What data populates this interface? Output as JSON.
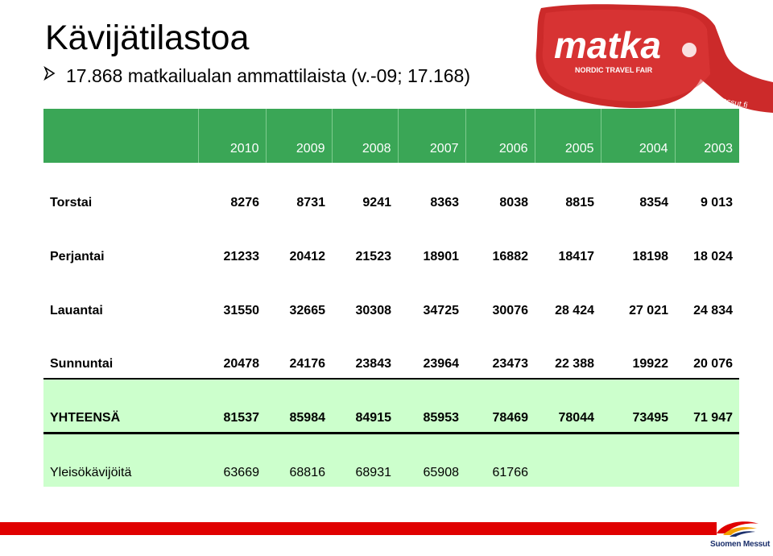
{
  "title": "Kävijätilastoa",
  "bullet": "17.868 matkailualan ammattilaista  (v.-09; 17.168)",
  "logo": {
    "brand": "matka",
    "tagline": "NORDIC TRAVEL FAIR",
    "url": "matkamessut.fi",
    "color": "#d12a2a"
  },
  "table": {
    "header_color": "#3aa656",
    "highlight_color": "#ccffcc",
    "years": [
      "2010",
      "2009",
      "2008",
      "2007",
      "2006",
      "2005",
      "2004",
      "2003"
    ],
    "rows": [
      {
        "label": "Torstai",
        "values": [
          "8276",
          "8731",
          "9241",
          "8363",
          "8038",
          "8815",
          "8354",
          "9 013"
        ]
      },
      {
        "label": "Perjantai",
        "values": [
          "21233",
          "20412",
          "21523",
          "18901",
          "16882",
          "18417",
          "18198",
          "18 024"
        ]
      },
      {
        "label": "Lauantai",
        "values": [
          "31550",
          "32665",
          "30308",
          "34725",
          "30076",
          "28 424",
          "27 021",
          "24 834"
        ]
      },
      {
        "label": "Sunnuntai",
        "values": [
          "20478",
          "24176",
          "23843",
          "23964",
          "23473",
          "22 388",
          "19922",
          "20 076"
        ]
      },
      {
        "label": "YHTEENSÄ",
        "values": [
          "81537",
          "85984",
          "84915",
          "85953",
          "78469",
          "78044",
          "73495",
          "71 947"
        ]
      },
      {
        "label": "Yleisökävijöitä",
        "values": [
          "63669",
          "68816",
          "68931",
          "65908",
          "61766",
          "",
          "",
          ""
        ]
      }
    ]
  },
  "footer": {
    "company": "Suomen Messut",
    "bar_color": "#e00000"
  }
}
